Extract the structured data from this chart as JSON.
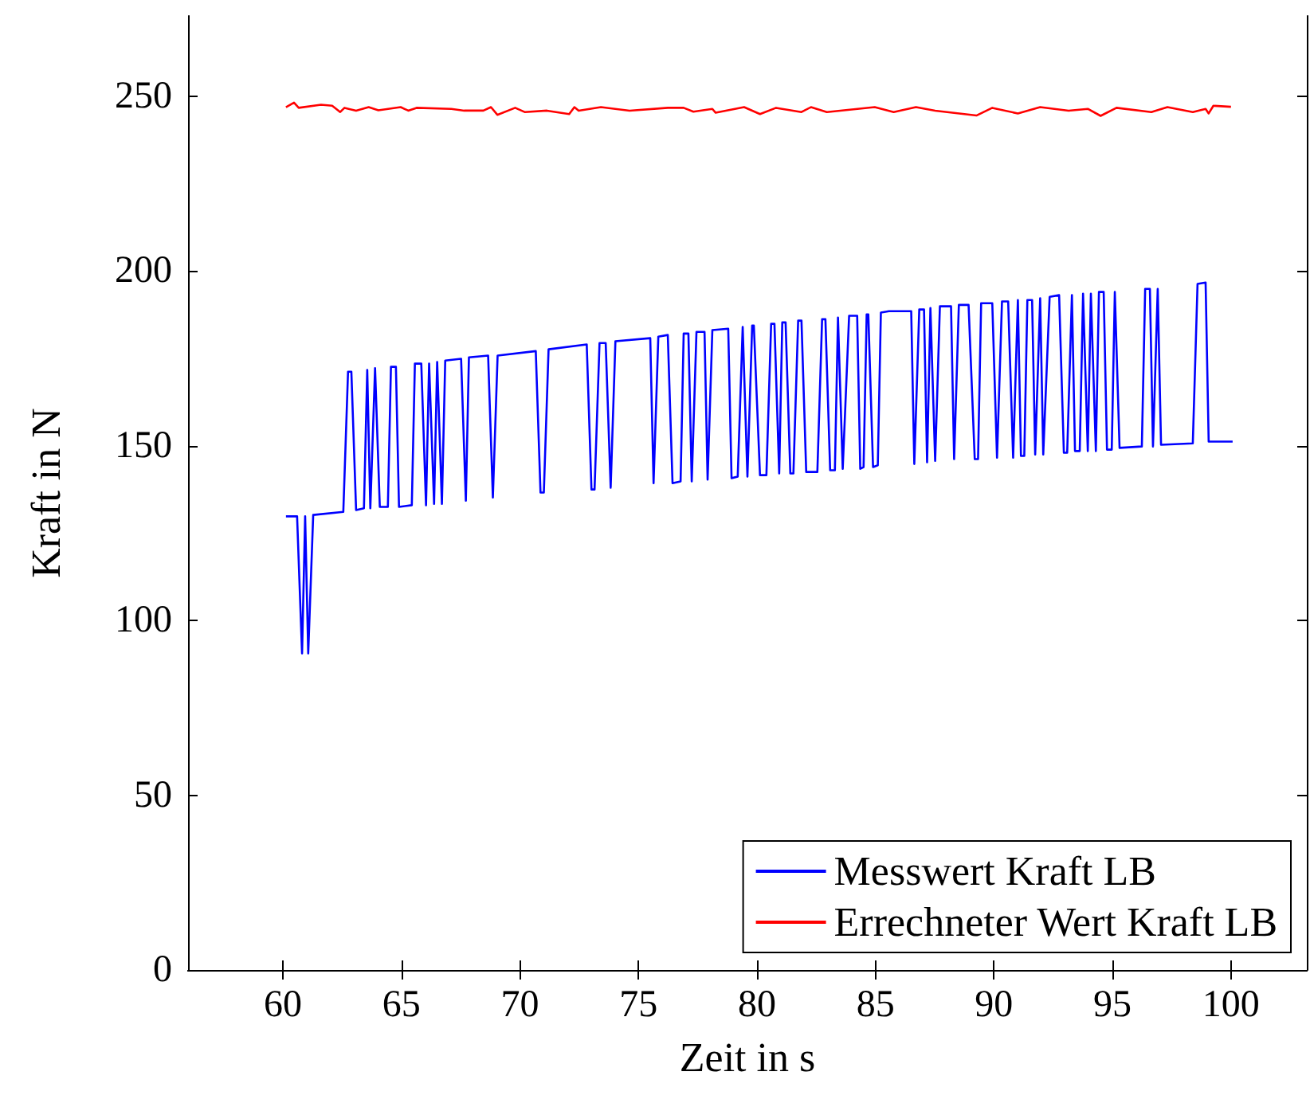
{
  "chart_data": {
    "type": "line",
    "xlabel": "Zeit in s",
    "ylabel": "Kraft in N",
    "xlim": [
      56,
      103.2
    ],
    "xticks": [
      60,
      65,
      70,
      75,
      80,
      85,
      90,
      95,
      100
    ],
    "ylim": [
      0,
      273
    ],
    "yticks": [
      0,
      50,
      100,
      150,
      200,
      250
    ],
    "grid": false,
    "legend": "bottom right",
    "marker": "none",
    "line_style": "solid",
    "series": [
      {
        "name": "Messwert Kraft LB",
        "color": "#0000ff",
        "x": [
          60.13,
          60.6,
          60.81,
          60.94,
          61.07,
          61.28,
          62.55,
          62.75,
          62.89,
          63.09,
          63.42,
          63.56,
          63.69,
          63.89,
          64.09,
          64.43,
          64.56,
          64.77,
          64.9,
          65.44,
          65.57,
          65.84,
          66.04,
          66.17,
          66.38,
          66.51,
          66.71,
          66.85,
          67.52,
          67.72,
          67.85,
          68.66,
          68.86,
          69.06,
          70.67,
          70.87,
          71.01,
          71.21,
          72.82,
          73.02,
          73.15,
          73.36,
          73.62,
          73.83,
          74.03,
          75.5,
          75.64,
          75.84,
          76.24,
          76.44,
          76.78,
          76.91,
          77.11,
          77.25,
          77.45,
          77.79,
          77.92,
          78.12,
          78.79,
          78.93,
          79.19,
          79.4,
          79.6,
          79.8,
          79.87,
          80.13,
          80.4,
          80.6,
          80.74,
          80.94,
          81.07,
          81.21,
          81.41,
          81.54,
          81.74,
          81.88,
          82.08,
          82.55,
          82.75,
          82.89,
          83.09,
          83.29,
          83.42,
          83.62,
          83.89,
          84.23,
          84.36,
          84.5,
          84.63,
          84.7,
          84.9,
          85.1,
          85.23,
          85.57,
          86.51,
          86.64,
          86.85,
          87.05,
          87.18,
          87.32,
          87.52,
          87.72,
          88.19,
          88.32,
          88.52,
          88.93,
          89.19,
          89.33,
          89.46,
          89.93,
          90.13,
          90.34,
          90.6,
          90.81,
          91.01,
          91.14,
          91.28,
          91.41,
          91.61,
          91.74,
          91.95,
          92.08,
          92.35,
          92.75,
          92.95,
          93.09,
          93.29,
          93.42,
          93.62,
          93.76,
          93.96,
          94.09,
          94.3,
          94.43,
          94.63,
          94.77,
          94.97,
          95.1,
          95.3,
          96.24,
          96.38,
          96.58,
          96.71,
          96.91,
          97.05,
          98.39,
          98.59,
          98.93,
          99.06,
          100.07
        ],
        "values": [
          129.8,
          129.8,
          90.6,
          129.8,
          90.6,
          130.2,
          131.1,
          171.2,
          171.2,
          131.6,
          132.1,
          171.7,
          132.1,
          172.2,
          132.5,
          132.5,
          172.6,
          172.6,
          132.5,
          133.0,
          173.5,
          173.5,
          133.0,
          173.5,
          133.4,
          174.0,
          133.4,
          174.4,
          174.9,
          134.3,
          175.3,
          175.8,
          135.2,
          175.8,
          177.1,
          136.6,
          136.6,
          177.6,
          179.0,
          137.5,
          137.5,
          179.4,
          179.4,
          138.0,
          179.9,
          180.8,
          139.3,
          181.2,
          181.7,
          139.3,
          139.8,
          182.1,
          182.1,
          139.8,
          182.6,
          182.6,
          140.3,
          183.1,
          183.5,
          140.7,
          141.2,
          184.0,
          141.2,
          184.4,
          184.4,
          141.6,
          141.6,
          184.9,
          184.9,
          142.1,
          185.3,
          185.3,
          142.1,
          142.1,
          185.8,
          185.8,
          142.5,
          142.5,
          186.2,
          186.2,
          143.0,
          143.0,
          186.7,
          143.4,
          187.2,
          187.2,
          143.4,
          143.9,
          187.6,
          187.6,
          143.9,
          144.4,
          188.1,
          188.5,
          188.5,
          144.8,
          189.0,
          189.0,
          145.3,
          189.4,
          145.7,
          189.9,
          189.9,
          146.2,
          190.3,
          190.3,
          146.2,
          146.2,
          190.8,
          190.8,
          146.6,
          191.3,
          191.3,
          146.6,
          191.7,
          147.1,
          147.1,
          191.7,
          191.7,
          147.5,
          192.2,
          147.5,
          192.6,
          193.1,
          148.0,
          148.0,
          193.1,
          148.5,
          148.5,
          193.5,
          148.5,
          193.5,
          148.5,
          194.0,
          194.0,
          148.9,
          148.9,
          194.0,
          149.4,
          149.8,
          194.9,
          194.9,
          149.8,
          194.9,
          150.3,
          150.7,
          196.3,
          196.7,
          151.2,
          151.2
        ]
      },
      {
        "name": "Errechneter Wert Kraft LB",
        "color": "#ff0000",
        "x": [
          60.13,
          60.47,
          60.67,
          61.61,
          62.08,
          62.42,
          62.6,
          63.09,
          63.62,
          64.03,
          64.97,
          65.29,
          65.64,
          67.11,
          67.65,
          68.46,
          68.78,
          69.05,
          69.8,
          70.2,
          71.14,
          72.08,
          72.3,
          72.48,
          73.42,
          74.63,
          76.24,
          76.91,
          77.32,
          78.12,
          78.26,
          79.46,
          80.13,
          80.81,
          81.88,
          82.28,
          82.95,
          84.97,
          85.77,
          86.71,
          87.52,
          89.26,
          89.93,
          91.01,
          91.95,
          93.15,
          93.96,
          94.5,
          95.17,
          96.64,
          97.32,
          98.39,
          98.93,
          99.06,
          99.26,
          100
        ],
        "values": [
          246.9,
          248.2,
          246.7,
          247.6,
          247.3,
          245.5,
          246.7,
          245.9,
          246.9,
          246.0,
          246.9,
          245.9,
          246.7,
          246.4,
          245.9,
          245.9,
          246.9,
          244.7,
          246.7,
          245.5,
          245.9,
          244.9,
          246.9,
          245.9,
          246.9,
          245.9,
          246.7,
          246.7,
          245.6,
          246.4,
          245.3,
          246.9,
          244.9,
          246.7,
          245.5,
          246.9,
          245.5,
          246.9,
          245.5,
          246.9,
          245.9,
          244.5,
          246.7,
          245.1,
          246.9,
          245.9,
          246.4,
          244.4,
          246.7,
          245.5,
          246.9,
          245.5,
          246.4,
          245.1,
          247.3,
          247.0
        ]
      }
    ]
  }
}
